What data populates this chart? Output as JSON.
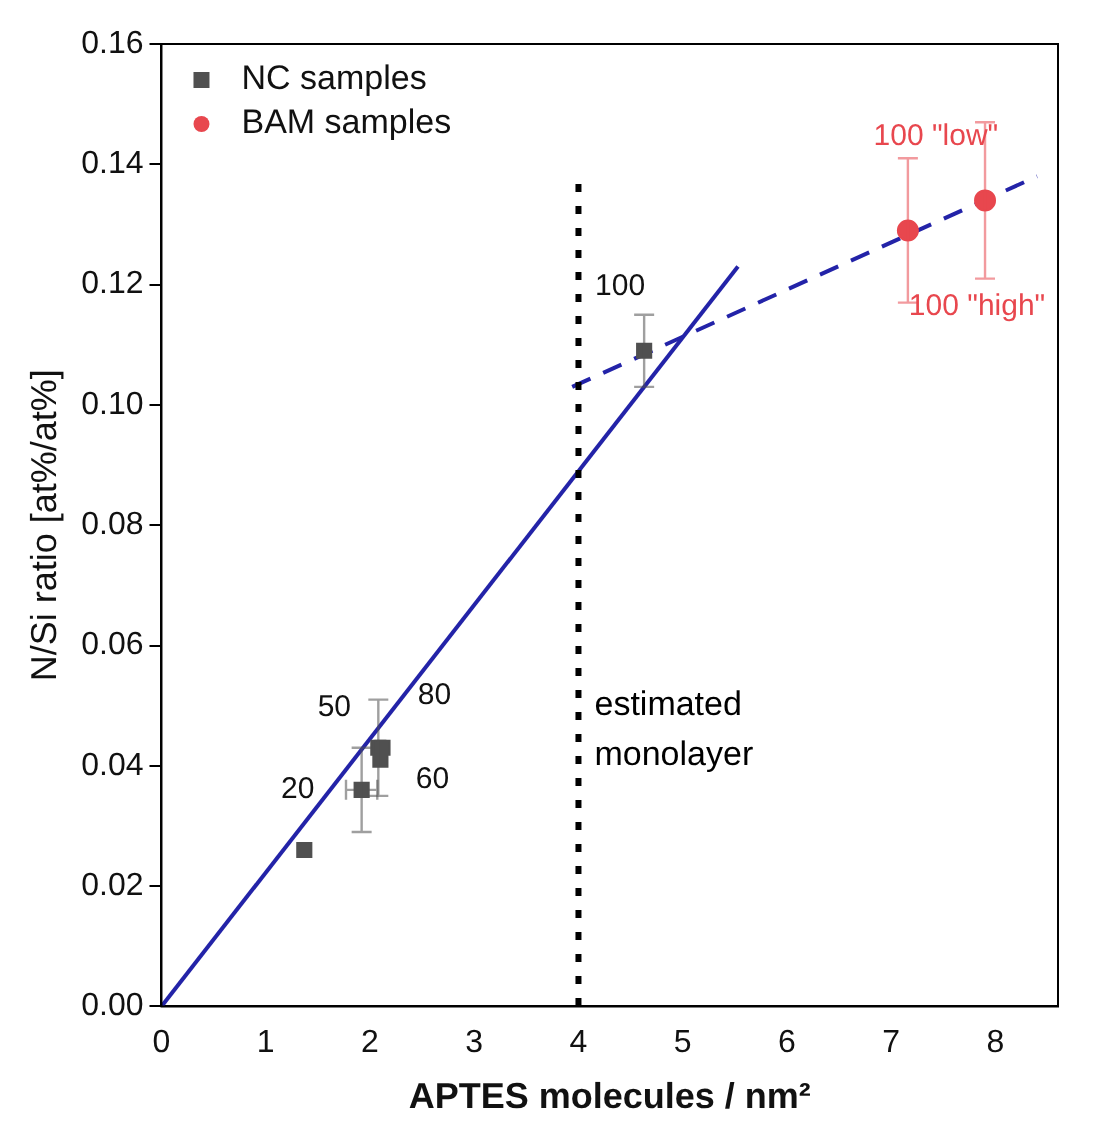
{
  "chart_data": {
    "type": "scatter",
    "xlabel": "APTES molecules / nm²",
    "ylabel": "N/Si ratio [at%/at%]",
    "xlim": [
      0,
      8.6
    ],
    "xticks": [
      0,
      1,
      2,
      3,
      4,
      5,
      6,
      7,
      8
    ],
    "ylim": [
      0,
      0.16
    ],
    "yticks": [
      {
        "value": 0,
        "label": "0.00"
      },
      {
        "value": 0.02,
        "label": "0.02"
      },
      {
        "value": 0.04,
        "label": "0.04"
      },
      {
        "value": 0.06,
        "label": "0.06"
      },
      {
        "value": 0.08,
        "label": "0.08"
      },
      {
        "value": 0.1,
        "label": "0.10"
      },
      {
        "value": 0.12,
        "label": "0.12"
      },
      {
        "value": 0.14,
        "label": "0.14"
      },
      {
        "value": 0.16,
        "label": "0.16"
      }
    ],
    "grid": false,
    "legend": "top left",
    "series": [
      {
        "name": "NC samples",
        "type": "scatter",
        "marker": "square",
        "color": "#505050",
        "x": [
          1.37,
          1.92,
          2.1,
          2.08,
          2.12,
          4.63
        ],
        "values": [
          0.026,
          0.036,
          0.041,
          0.043,
          0.043,
          0.109
        ],
        "errors": [
          null,
          0.007,
          null,
          0.008,
          null,
          0.006
        ],
        "xerrors": [
          null,
          0.15,
          null,
          null,
          null,
          null
        ]
      },
      {
        "name": "BAM samples",
        "type": "scatter",
        "marker": "circle",
        "color": "#e8474e",
        "x": [
          7.16,
          7.9
        ],
        "values": [
          0.129,
          0.134
        ],
        "errors": [
          0.012,
          0.013
        ]
      },
      {
        "type": "line",
        "marker": "none",
        "line_style": "solid",
        "color": "#2323a8",
        "x": [
          0,
          5.53
        ],
        "values": [
          0,
          0.123
        ]
      },
      {
        "type": "line",
        "marker": "none",
        "line_style": "dashed",
        "color": "#2323a8",
        "x": [
          3.94,
          8.4
        ],
        "values": [
          0.103,
          0.138
        ]
      }
    ],
    "ref_lines": [
      {
        "axis": "x",
        "value": 4,
        "label": "estimated monolayer",
        "color": "#000000",
        "line_style": "dotted"
      }
    ],
    "annotations": [
      {
        "text": "20",
        "x": 1.92,
        "y": 0.036
      },
      {
        "text": "50",
        "x": 2.08,
        "y": 0.043
      },
      {
        "text": "80",
        "x": 2.12,
        "y": 0.043
      },
      {
        "text": "60",
        "x": 2.1,
        "y": 0.041
      },
      {
        "text": "100",
        "x": 4.63,
        "y": 0.109
      },
      {
        "text": "100 \"low\"",
        "x": 7.16,
        "y": 0.129
      },
      {
        "text": "100 \"high\"",
        "x": 7.9,
        "y": 0.134
      }
    ]
  }
}
